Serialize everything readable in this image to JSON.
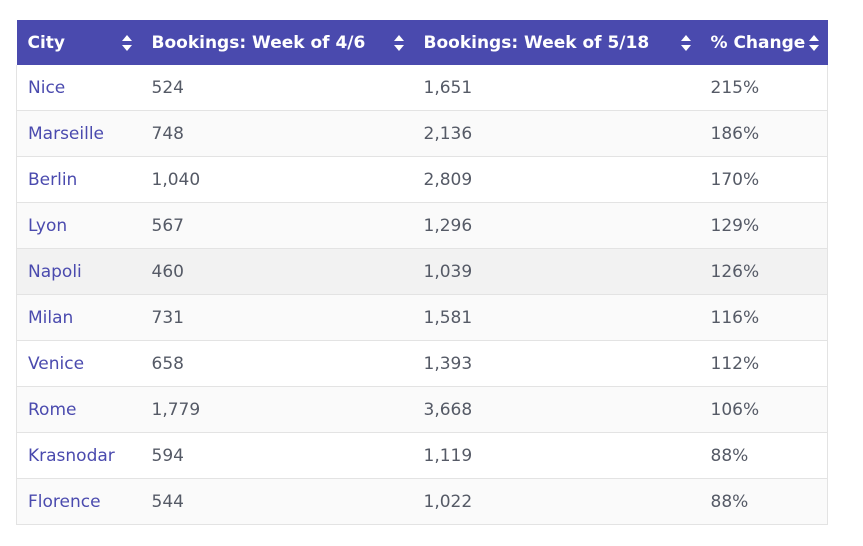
{
  "table": {
    "headers": [
      {
        "label": "City"
      },
      {
        "label": "Bookings: Week of 4/6"
      },
      {
        "label": "Bookings: Week of 5/18"
      },
      {
        "label": "% Change"
      }
    ],
    "rows": [
      {
        "city": "Nice",
        "week1": "524",
        "week2": "1,651",
        "change": "215%"
      },
      {
        "city": "Marseille",
        "week1": "748",
        "week2": "2,136",
        "change": "186%"
      },
      {
        "city": "Berlin",
        "week1": "1,040",
        "week2": "2,809",
        "change": "170%"
      },
      {
        "city": "Lyon",
        "week1": "567",
        "week2": "1,296",
        "change": "129%"
      },
      {
        "city": "Napoli",
        "week1": "460",
        "week2": "1,039",
        "change": "126%"
      },
      {
        "city": "Milan",
        "week1": "731",
        "week2": "1,581",
        "change": "116%"
      },
      {
        "city": "Venice",
        "week1": "658",
        "week2": "1,393",
        "change": "112%"
      },
      {
        "city": "Rome",
        "week1": "1,779",
        "week2": "3,668",
        "change": "106%"
      },
      {
        "city": "Krasnodar",
        "week1": "594",
        "week2": "1,119",
        "change": "88%"
      },
      {
        "city": "Florence",
        "week1": "544",
        "week2": "1,022",
        "change": "88%"
      }
    ]
  },
  "colors": {
    "header_bg": "#4a4aae",
    "city_text": "#4a4aae",
    "cell_text": "#555a66"
  },
  "icons": {
    "sort": "sort-arrows-icon"
  }
}
